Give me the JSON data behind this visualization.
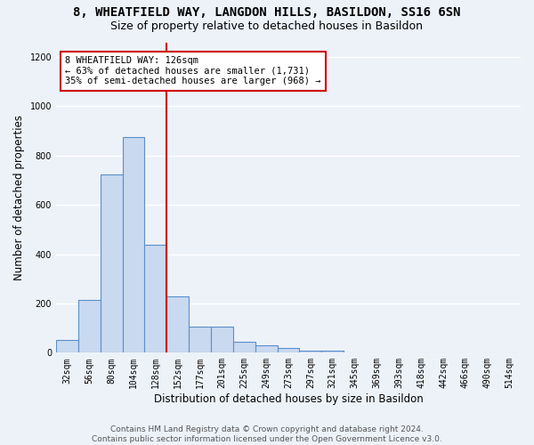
{
  "title": "8, WHEATFIELD WAY, LANGDON HILLS, BASILDON, SS16 6SN",
  "subtitle": "Size of property relative to detached houses in Basildon",
  "xlabel": "Distribution of detached houses by size in Basildon",
  "ylabel": "Number of detached properties",
  "footer": "Contains HM Land Registry data © Crown copyright and database right 2024.\nContains public sector information licensed under the Open Government Licence v3.0.",
  "categories": [
    "32sqm",
    "56sqm",
    "80sqm",
    "104sqm",
    "128sqm",
    "152sqm",
    "177sqm",
    "201sqm",
    "225sqm",
    "249sqm",
    "273sqm",
    "297sqm",
    "321sqm",
    "345sqm",
    "369sqm",
    "393sqm",
    "418sqm",
    "442sqm",
    "466sqm",
    "490sqm",
    "514sqm"
  ],
  "values": [
    50,
    215,
    725,
    875,
    440,
    230,
    105,
    105,
    45,
    30,
    20,
    10,
    10,
    0,
    0,
    0,
    0,
    0,
    0,
    0,
    0
  ],
  "bar_color": "#c9d9f0",
  "bar_edge_color": "#5b8fc9",
  "vline_color": "#cc0000",
  "annotation_text": "8 WHEATFIELD WAY: 126sqm\n← 63% of detached houses are smaller (1,731)\n35% of semi-detached houses are larger (968) →",
  "annotation_box_color": "#ffffff",
  "annotation_box_edge": "#cc0000",
  "ylim": [
    0,
    1260
  ],
  "yticks": [
    0,
    200,
    400,
    600,
    800,
    1000,
    1200
  ],
  "bg_color": "#edf2f9",
  "grid_color": "#ffffff",
  "title_fontsize": 10,
  "subtitle_fontsize": 9,
  "axis_label_fontsize": 8.5,
  "tick_fontsize": 7,
  "footer_fontsize": 6.5,
  "annotation_fontsize": 7.5,
  "vline_index": 4
}
